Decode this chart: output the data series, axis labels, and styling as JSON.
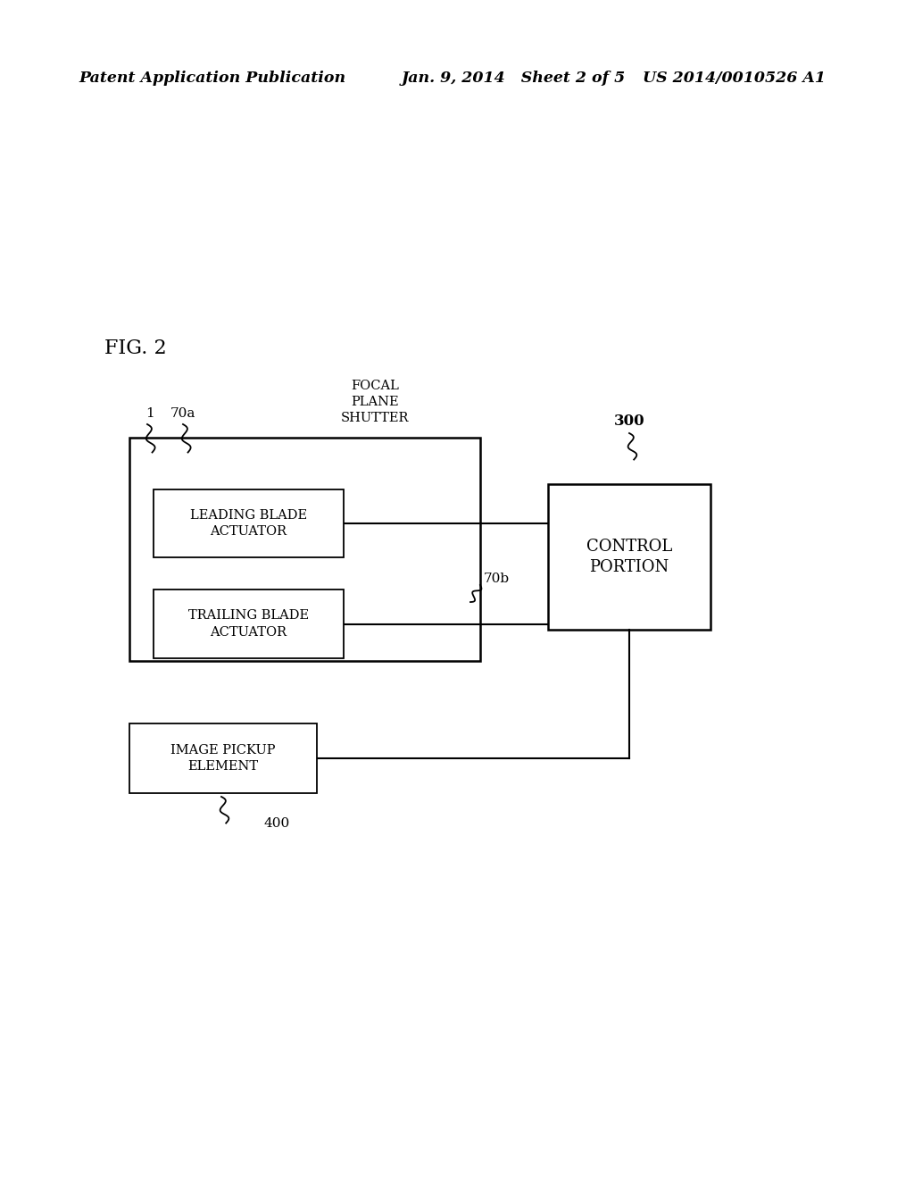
{
  "background_color": "#ffffff",
  "header_left": "Patent Application Publication",
  "header_mid": "Jan. 9, 2014   Sheet 2 of 5",
  "header_right": "US 2014/0010526 A1",
  "fig_label": "FIG. 2",
  "focal_plane_label": "FOCAL\nPLANE\nSHUTTER",
  "leading_label": "LEADING BLADE\nACTUATOR",
  "trailing_label": "TRAILING BLADE\nACTUATOR",
  "control_label": "CONTROL\nPORTION",
  "image_pickup_label": "IMAGE PICKUP\nELEMENT",
  "label_1": "1",
  "label_70a": "70a",
  "label_70b": "70b",
  "label_300": "300",
  "label_400": "400",
  "font_size_header": 12.5,
  "font_size_fig": 16,
  "font_size_box_inner": 10.5,
  "font_size_box_ctrl": 13,
  "font_size_label": 11
}
